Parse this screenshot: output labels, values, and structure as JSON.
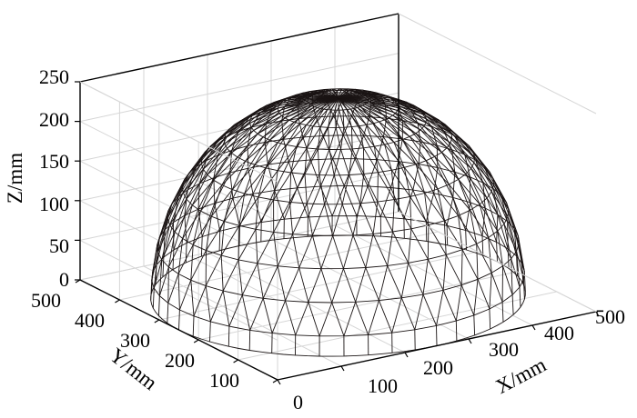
{
  "chart_data": {
    "type": "surface-wireframe-3d",
    "title": "",
    "zlabel": "Z/mm",
    "ylabel": "Y/mm",
    "xlabel": "X/mm",
    "zticks": [
      "250",
      "200",
      "150",
      "100",
      "50",
      "0"
    ],
    "yticks": [
      "500",
      "400",
      "300",
      "200",
      "100",
      "0"
    ],
    "xticks": [
      "100",
      "200",
      "300",
      "400",
      "500"
    ],
    "xlim": [
      0,
      500
    ],
    "ylim": [
      0,
      500
    ],
    "zlim": [
      0,
      250
    ],
    "grid": true,
    "surface": {
      "shape": "hemisphere geodesic lattice",
      "center_x": 250,
      "center_y": 250,
      "base_z": 0,
      "radius": 250,
      "latitude_rings": 9,
      "meridians": 48,
      "base_z_cut": 25
    },
    "colors": {
      "mesh": "#1a1414",
      "grid": "#d6d6d6",
      "axes": "#000000"
    }
  }
}
